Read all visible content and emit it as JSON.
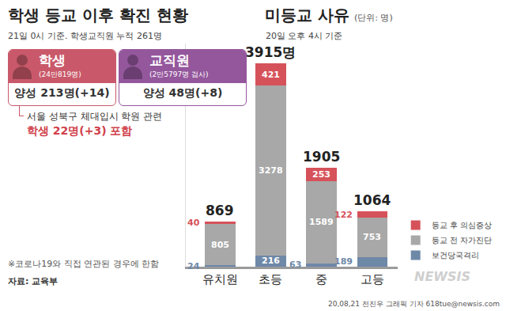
{
  "chart_data": {
    "type": "bar",
    "stacked": true,
    "title": "미등교 사유",
    "unit": "(단위: 명)",
    "subtitle": "20일 오후 4시 기준",
    "categories": [
      "유치원",
      "초등",
      "중",
      "고등"
    ],
    "series": [
      {
        "name": "보건당국격리",
        "color": "#6e88a8",
        "values": [
          24,
          216,
          63,
          189
        ]
      },
      {
        "name": "등교 전 자가진단",
        "color": "#a8a8a8",
        "values": [
          805,
          3278,
          1589,
          753
        ]
      },
      {
        "name": "등교 후 의심증상",
        "color": "#d6525a",
        "values": [
          40,
          421,
          253,
          122
        ]
      }
    ],
    "totals": [
      869,
      3915,
      1905,
      1064
    ],
    "total_labels": [
      "869",
      "3915명",
      "1905",
      "1064"
    ],
    "ylim": [
      0,
      4300
    ],
    "data_labels": true,
    "tick_labels": "x",
    "legend": "right",
    "grid": false
  },
  "infographic": {
    "title": "학생 등교 이후 확진 현황",
    "subtitle": "21일 0시 기준. 학생교직원 누적 261명",
    "groups": [
      {
        "label": "학생",
        "detail": "(24만819명)",
        "result": "양성 213명(+14)",
        "color": "#c9596a"
      },
      {
        "label": "교직원",
        "detail": "(2만5797명 검사)",
        "result": "양성 48명(+8)",
        "color": "#94579c"
      }
    ],
    "callout": [
      "서울 성북구 체대입시 학원 관련",
      "학생 22명(+3) 포함"
    ],
    "footnote": "※코로나19와 직접 연관된 경우에 한함",
    "source": "자료: 교육부",
    "credit": "20,08,21 전진우 그래픽 기자 618tue@newsis.com",
    "watermark": "NEWSIS"
  }
}
